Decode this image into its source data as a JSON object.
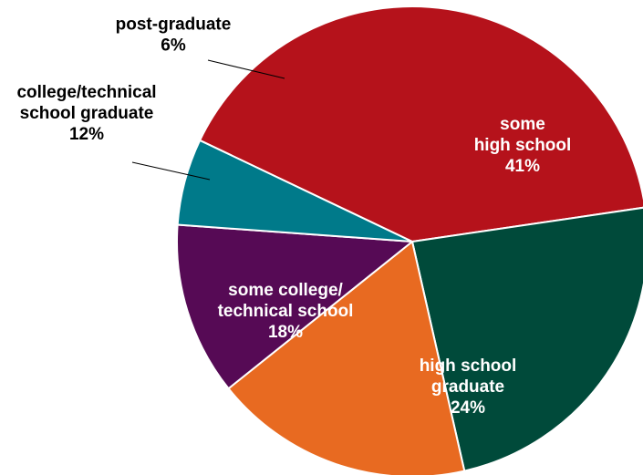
{
  "chart_data": {
    "type": "pie",
    "title": "",
    "slices": [
      {
        "label": "some high school",
        "label_lines": [
          "some",
          "high school",
          "41%"
        ],
        "value": 41,
        "color": "#B5121B",
        "text_color": "#ffffff",
        "label_placement": "inside"
      },
      {
        "label": "high school graduate",
        "label_lines": [
          "high school",
          "graduate",
          "24%"
        ],
        "value": 24,
        "color": "#004A3A",
        "text_color": "#ffffff",
        "label_placement": "inside"
      },
      {
        "label": "some college/ technical school",
        "label_lines": [
          "some college/",
          "technical school",
          "18%"
        ],
        "value": 18,
        "color": "#E86A21",
        "text_color": "#ffffff",
        "label_placement": "inside"
      },
      {
        "label": "college/technical school graduate",
        "label_lines": [
          "college/technical",
          "school graduate",
          "12%"
        ],
        "value": 12,
        "color": "#560A55",
        "text_color": "#000000",
        "label_placement": "outside"
      },
      {
        "label": "post-graduate",
        "label_lines": [
          "post-graduate",
          "6%"
        ],
        "value": 6,
        "color": "#007A8A",
        "text_color": "#000000",
        "label_placement": "outside"
      }
    ]
  }
}
